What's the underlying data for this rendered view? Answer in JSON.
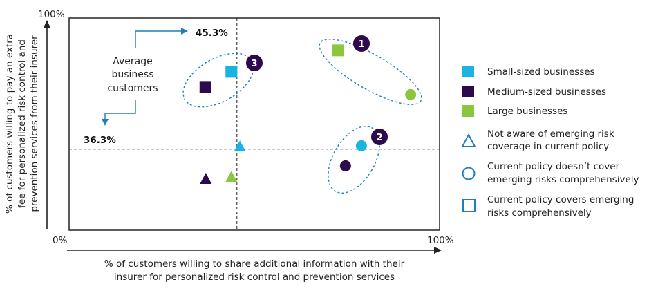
{
  "chart_data": {
    "type": "scatter",
    "title": "",
    "xlabel": [
      "% of customers willing to share additional information with their",
      "insurer for personalized risk control and prevention services"
    ],
    "ylabel": [
      "% of customers willing to pay an extra",
      "fee for personalized risk control and",
      "prevention services from their insurer"
    ],
    "xlim": [
      0,
      100
    ],
    "ylim": [
      0,
      95
    ],
    "x_tick_labels": {
      "min": "0%",
      "max": "100%"
    },
    "y_tick_labels": {
      "max": "100%"
    },
    "grid": false,
    "reference_lines": {
      "vertical": {
        "value": 45.3,
        "label": "45.3%"
      },
      "horizontal": {
        "value": 36.3,
        "label": "36.3%"
      }
    },
    "annotation": {
      "lines": [
        "Average",
        "business",
        "customers"
      ]
    },
    "colors": {
      "small": "#1bb3e0",
      "medium": "#2d0a4e",
      "large": "#8cc63f",
      "outline": "#1f7fb6",
      "axis": "#222222"
    },
    "series": [
      {
        "name": "Small-sized businesses",
        "key": "small",
        "points": [
          {
            "shape": "square",
            "x": 43.8,
            "y": 70.9
          },
          {
            "shape": "circle",
            "x": 78.9,
            "y": 37.8
          },
          {
            "shape": "triangle",
            "x": 46.1,
            "y": 37.4
          }
        ]
      },
      {
        "name": "Medium-sized businesses",
        "key": "medium",
        "points": [
          {
            "shape": "square",
            "x": 36.8,
            "y": 64.1
          },
          {
            "shape": "circle",
            "x": 74.6,
            "y": 28.8
          },
          {
            "shape": "triangle",
            "x": 36.9,
            "y": 22.9
          }
        ]
      },
      {
        "name": "Large businesses",
        "key": "large",
        "points": [
          {
            "shape": "square",
            "x": 72.6,
            "y": 80.5
          },
          {
            "shape": "circle",
            "x": 92.2,
            "y": 60.7
          },
          {
            "shape": "triangle",
            "x": 43.8,
            "y": 23.8
          }
        ]
      }
    ],
    "clusters": [
      {
        "label": "1",
        "members": [
          "Large businesses square",
          "Large businesses circle"
        ]
      },
      {
        "label": "2",
        "members": [
          "Small-sized businesses circle",
          "Medium-sized businesses circle"
        ]
      },
      {
        "label": "3",
        "members": [
          "Small-sized businesses square",
          "Medium-sized businesses square"
        ]
      }
    ],
    "legend": {
      "position": "right",
      "color_entries": [
        {
          "label": "Small-sized businesses",
          "key": "small"
        },
        {
          "label": "Medium-sized businesses",
          "key": "medium"
        },
        {
          "label": "Large businesses",
          "key": "large"
        }
      ],
      "shape_entries": [
        {
          "shape": "triangle",
          "lines": [
            "Not aware of emerging risk",
            "coverage in current policy"
          ]
        },
        {
          "shape": "circle",
          "lines": [
            "Current policy doesn’t cover",
            "emerging risks comprehensively"
          ]
        },
        {
          "shape": "square",
          "lines": [
            "Current policy covers emerging",
            "risks comprehensively"
          ]
        }
      ]
    }
  }
}
